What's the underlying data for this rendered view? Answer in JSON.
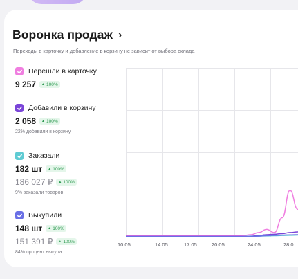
{
  "header": {
    "title": "Воронка продаж",
    "chevron": "›"
  },
  "subtitle": "Переходы в карточку и добавление в корзину не зависит от выбора склада",
  "metrics": [
    {
      "label": "Перешли в карточку",
      "value": "9 257",
      "badge": "100%",
      "color": "#f07ee0"
    },
    {
      "label": "Добавили в корзину",
      "value": "2 058",
      "badge": "100%",
      "note": "22% добавили в корзину",
      "color": "#7a45d8"
    },
    {
      "label": "Заказали",
      "value": "182 шт",
      "badge": "100%",
      "value2": "186 027 ₽",
      "badge2": "100%",
      "note": "9% заказали товаров",
      "color": "#5fcbd3"
    },
    {
      "label": "Выкупили",
      "value": "148 шт",
      "badge": "100%",
      "value2": "151 391 ₽",
      "badge2": "100%",
      "note": "84% процент выкупа",
      "color": "#6a70e6"
    }
  ],
  "chart_data": {
    "type": "line",
    "x_ticks": [
      "10.05",
      "14.05",
      "17.05",
      "20.05",
      "24.05",
      "28.0"
    ],
    "series": [
      {
        "color": "#f07ee0",
        "values": [
          0.5,
          0.5,
          0.5,
          0.5,
          0.5,
          0.5,
          0.5,
          0.5,
          0.5,
          0.5,
          0.5,
          0.5,
          0.5,
          0.5,
          0.5,
          0.6,
          1,
          2,
          3.5,
          2,
          9,
          22,
          13,
          11
        ]
      },
      {
        "color": "#7a45d8",
        "values": [
          0.2,
          0.2,
          0.2,
          0.2,
          0.2,
          0.2,
          0.2,
          0.2,
          0.2,
          0.2,
          0.2,
          0.2,
          0.2,
          0.2,
          0.2,
          0.2,
          0.3,
          0.6,
          1,
          1.2,
          1.5,
          2,
          2.3,
          2.5
        ]
      },
      {
        "color": "#5fcbd3",
        "values": [
          0.1,
          0.1,
          0.1,
          0.1,
          0.1,
          0.1,
          0.1,
          0.1,
          0.1,
          0.1,
          0.1,
          0.1,
          0.1,
          0.1,
          0.1,
          0.1,
          0.2,
          0.3,
          0.4,
          0.5,
          0.6,
          0.7,
          0.8,
          0.9
        ]
      },
      {
        "color": "#6a70e6",
        "values": [
          0.1,
          0.1,
          0.1,
          0.1,
          0.1,
          0.1,
          0.1,
          0.1,
          0.1,
          0.1,
          0.1,
          0.1,
          0.1,
          0.1,
          0.1,
          0.1,
          0.2,
          0.3,
          0.5,
          0.7,
          0.8,
          0.9,
          1,
          1.1
        ]
      }
    ],
    "ylim": [
      0,
      80
    ],
    "grid": true
  }
}
